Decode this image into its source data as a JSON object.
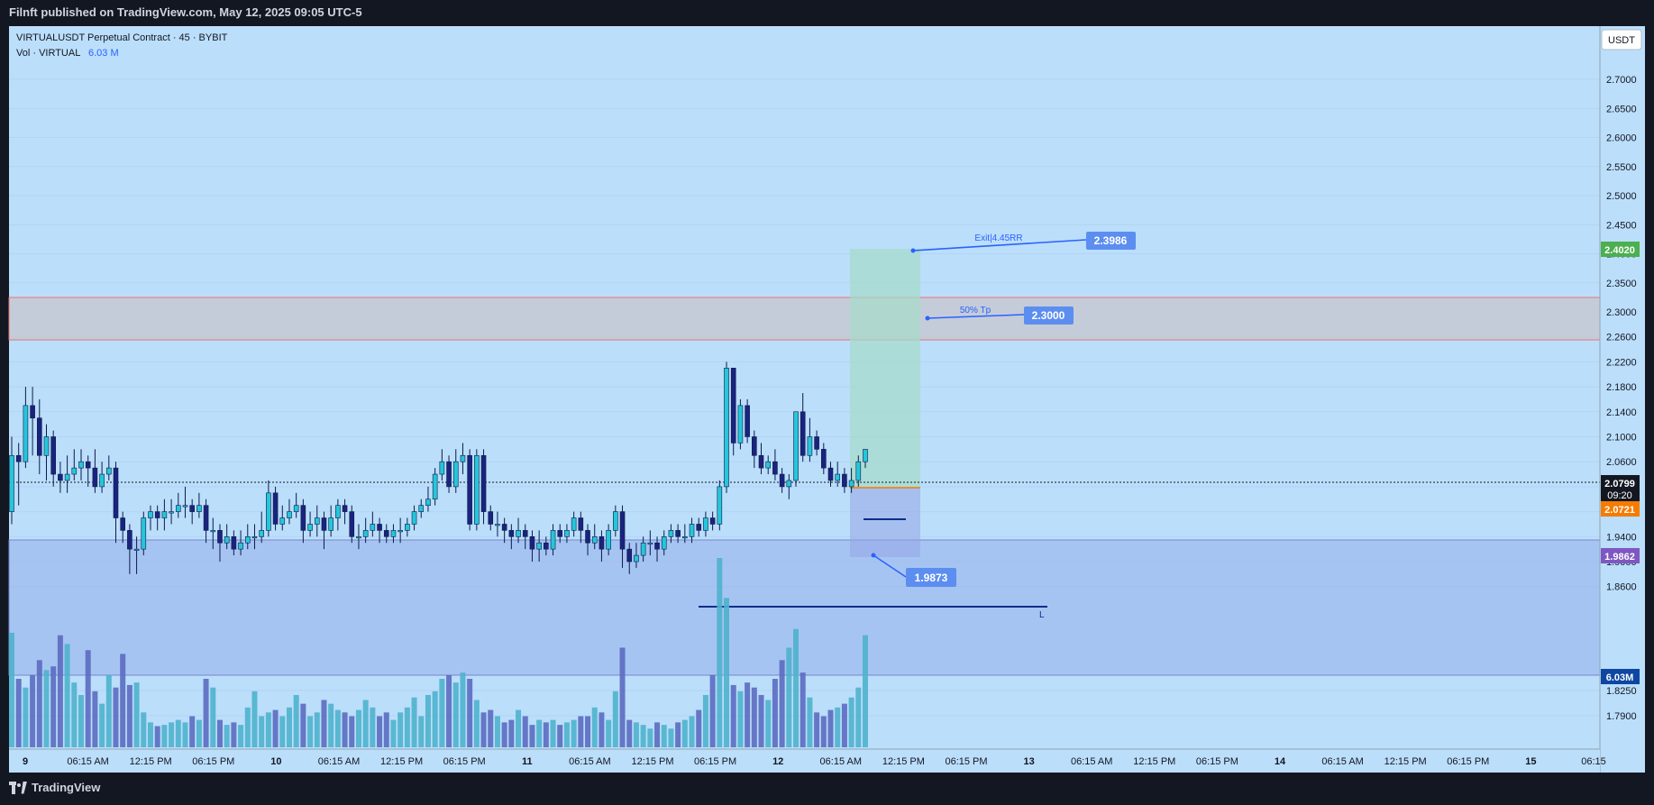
{
  "header": {
    "published": "Filnft published on TradingView.com, May 12, 2025 09:05 UTC-5"
  },
  "legend": {
    "symbol": "VIRTUALUSDT Perpetual Contract · 45 · BYBIT",
    "vol_label": "Vol · VIRTUAL",
    "vol_value": "6.03 M"
  },
  "currency": "USDT",
  "price_axis": {
    "ticks": [
      "2.7000",
      "2.6500",
      "2.6000",
      "2.5500",
      "2.5000",
      "2.4500",
      "2.4000",
      "2.3500",
      "2.3000",
      "2.2600",
      "2.2200",
      "2.1800",
      "2.1400",
      "2.1000",
      "2.0600",
      "2.0200",
      "1.9800",
      "1.9400",
      "1.9000",
      "1.8600",
      "1.8250",
      "1.7900"
    ]
  },
  "badges": {
    "target": {
      "text": "2.4020",
      "color": "#4caf50"
    },
    "last_price": {
      "text": "2.0799",
      "countdown": "09:20",
      "color": "#131722"
    },
    "entry": {
      "text": "2.0721",
      "color": "#f57c00"
    },
    "stop": {
      "text": "1.9862",
      "color": "#7e57c2"
    },
    "volume": {
      "text": "6.03M",
      "color": "#0d47a1"
    }
  },
  "time_axis": {
    "ticks": [
      "9",
      "06:15 AM",
      "12:15 PM",
      "06:15 PM",
      "10",
      "06:15 AM",
      "12:15 PM",
      "06:15 PM",
      "11",
      "06:15 AM",
      "12:15 PM",
      "06:15 PM",
      "12",
      "06:15 AM",
      "12:15 PM",
      "06:15 PM",
      "13",
      "06:15 AM",
      "12:15 PM",
      "06:15 PM",
      "14",
      "06:15 AM",
      "12:15 PM",
      "06:15 PM",
      "15",
      "06:15"
    ]
  },
  "annotations": {
    "exit_label": "Exit|4.45RR",
    "exit_price": "2.3986",
    "tp_label": "50% Tp",
    "tp_price": "2.3000",
    "stop_price": "1.9873",
    "line_label": "L"
  },
  "colors": {
    "chart_bg": "#bbdefb",
    "candle_up": "#26c6da",
    "candle_down": "#1a237e",
    "vol_up": "#4fb3cc",
    "vol_down": "#5c6bc0",
    "zone_red": "#e57373"
  },
  "brand": "TradingView",
  "candles": [
    [
      1.98,
      2.07,
      2.1,
      1.96
    ],
    [
      2.07,
      2.06,
      2.09,
      1.99
    ],
    [
      2.06,
      2.15,
      2.18,
      2.05
    ],
    [
      2.15,
      2.13,
      2.18,
      2.07
    ],
    [
      2.13,
      2.07,
      2.16,
      2.04
    ],
    [
      2.07,
      2.1,
      2.12,
      2.03
    ],
    [
      2.1,
      2.04,
      2.11,
      2.02
    ],
    [
      2.04,
      2.03,
      2.06,
      2.01
    ],
    [
      2.03,
      2.04,
      2.07,
      2.01
    ],
    [
      2.04,
      2.05,
      2.08,
      2.03
    ],
    [
      2.05,
      2.06,
      2.08,
      2.03
    ],
    [
      2.06,
      2.05,
      2.07,
      2.02
    ],
    [
      2.05,
      2.02,
      2.08,
      2.01
    ],
    [
      2.02,
      2.04,
      2.06,
      2.01
    ],
    [
      2.04,
      2.05,
      2.07,
      2.03
    ],
    [
      2.05,
      1.97,
      2.06,
      1.93
    ],
    [
      1.97,
      1.95,
      1.98,
      1.93
    ],
    [
      1.95,
      1.92,
      1.96,
      1.88
    ],
    [
      1.92,
      1.92,
      1.94,
      1.88
    ],
    [
      1.92,
      1.97,
      1.98,
      1.91
    ],
    [
      1.97,
      1.98,
      1.99,
      1.95
    ],
    [
      1.98,
      1.97,
      1.99,
      1.95
    ],
    [
      1.97,
      1.98,
      2.0,
      1.95
    ],
    [
      1.98,
      1.98,
      2.0,
      1.96
    ],
    [
      1.98,
      1.99,
      2.01,
      1.97
    ],
    [
      1.99,
      1.99,
      2.02,
      1.97
    ],
    [
      1.99,
      1.98,
      2.0,
      1.96
    ],
    [
      1.98,
      1.99,
      2.01,
      1.97
    ],
    [
      1.99,
      1.95,
      2.0,
      1.93
    ],
    [
      1.95,
      1.95,
      1.97,
      1.92
    ],
    [
      1.95,
      1.93,
      1.96,
      1.9
    ],
    [
      1.93,
      1.94,
      1.96,
      1.92
    ],
    [
      1.94,
      1.92,
      1.95,
      1.91
    ],
    [
      1.92,
      1.93,
      1.95,
      1.91
    ],
    [
      1.93,
      1.94,
      1.96,
      1.92
    ],
    [
      1.94,
      1.94,
      1.96,
      1.92
    ],
    [
      1.94,
      1.95,
      1.98,
      1.93
    ],
    [
      1.95,
      2.01,
      2.03,
      1.94
    ],
    [
      2.01,
      1.96,
      2.02,
      1.95
    ],
    [
      1.96,
      1.97,
      1.99,
      1.95
    ],
    [
      1.97,
      1.98,
      2.0,
      1.96
    ],
    [
      1.98,
      1.99,
      2.01,
      1.97
    ],
    [
      1.99,
      1.95,
      2.0,
      1.93
    ],
    [
      1.95,
      1.96,
      1.98,
      1.94
    ],
    [
      1.96,
      1.97,
      1.99,
      1.94
    ],
    [
      1.97,
      1.95,
      1.98,
      1.92
    ],
    [
      1.95,
      1.97,
      1.99,
      1.94
    ],
    [
      1.97,
      1.99,
      2.0,
      1.95
    ],
    [
      1.99,
      1.98,
      2.0,
      1.96
    ],
    [
      1.98,
      1.94,
      1.99,
      1.93
    ],
    [
      1.94,
      1.94,
      1.96,
      1.92
    ],
    [
      1.94,
      1.95,
      1.97,
      1.93
    ],
    [
      1.95,
      1.96,
      1.98,
      1.94
    ],
    [
      1.96,
      1.95,
      1.97,
      1.93
    ],
    [
      1.95,
      1.94,
      1.96,
      1.93
    ],
    [
      1.94,
      1.95,
      1.96,
      1.93
    ],
    [
      1.95,
      1.95,
      1.97,
      1.93
    ],
    [
      1.95,
      1.96,
      1.97,
      1.94
    ],
    [
      1.96,
      1.98,
      1.99,
      1.95
    ],
    [
      1.98,
      1.99,
      2.0,
      1.97
    ],
    [
      1.99,
      2.0,
      2.02,
      1.98
    ],
    [
      2.0,
      2.04,
      2.05,
      1.99
    ],
    [
      2.04,
      2.06,
      2.08,
      2.03
    ],
    [
      2.06,
      2.02,
      2.07,
      2.01
    ],
    [
      2.02,
      2.06,
      2.08,
      2.01
    ],
    [
      2.06,
      2.07,
      2.09,
      2.04
    ],
    [
      2.07,
      1.96,
      2.08,
      1.95
    ],
    [
      1.96,
      2.07,
      2.08,
      1.95
    ],
    [
      2.07,
      1.98,
      2.08,
      1.96
    ],
    [
      1.98,
      1.96,
      1.99,
      1.95
    ],
    [
      1.96,
      1.96,
      1.98,
      1.94
    ],
    [
      1.96,
      1.95,
      1.97,
      1.93
    ],
    [
      1.95,
      1.94,
      1.96,
      1.92
    ],
    [
      1.94,
      1.95,
      1.97,
      1.93
    ],
    [
      1.95,
      1.94,
      1.96,
      1.92
    ],
    [
      1.94,
      1.92,
      1.95,
      1.9
    ],
    [
      1.92,
      1.93,
      1.95,
      1.9
    ],
    [
      1.93,
      1.92,
      1.94,
      1.91
    ],
    [
      1.92,
      1.95,
      1.96,
      1.91
    ],
    [
      1.95,
      1.94,
      1.96,
      1.93
    ],
    [
      1.94,
      1.95,
      1.96,
      1.93
    ],
    [
      1.95,
      1.97,
      1.98,
      1.94
    ],
    [
      1.97,
      1.95,
      1.98,
      1.93
    ],
    [
      1.95,
      1.93,
      1.96,
      1.91
    ],
    [
      1.93,
      1.94,
      1.96,
      1.92
    ],
    [
      1.94,
      1.92,
      1.95,
      1.9
    ],
    [
      1.92,
      1.95,
      1.96,
      1.91
    ],
    [
      1.95,
      1.98,
      1.99,
      1.94
    ],
    [
      1.98,
      1.92,
      1.99,
      1.89
    ],
    [
      1.92,
      1.9,
      1.93,
      1.88
    ],
    [
      1.9,
      1.91,
      1.93,
      1.89
    ],
    [
      1.91,
      1.93,
      1.94,
      1.9
    ],
    [
      1.93,
      1.93,
      1.95,
      1.91
    ],
    [
      1.93,
      1.92,
      1.94,
      1.9
    ],
    [
      1.92,
      1.94,
      1.95,
      1.91
    ],
    [
      1.94,
      1.95,
      1.96,
      1.93
    ],
    [
      1.95,
      1.94,
      1.96,
      1.93
    ],
    [
      1.94,
      1.94,
      1.96,
      1.93
    ],
    [
      1.94,
      1.96,
      1.97,
      1.93
    ],
    [
      1.96,
      1.95,
      1.97,
      1.94
    ],
    [
      1.95,
      1.97,
      1.98,
      1.94
    ],
    [
      1.97,
      1.96,
      1.98,
      1.95
    ],
    [
      1.96,
      2.02,
      2.03,
      1.95
    ],
    [
      2.02,
      2.21,
      2.22,
      2.01
    ],
    [
      2.21,
      2.09,
      2.21,
      2.07
    ],
    [
      2.09,
      2.15,
      2.16,
      2.08
    ],
    [
      2.15,
      2.1,
      2.16,
      2.09
    ],
    [
      2.1,
      2.07,
      2.11,
      2.05
    ],
    [
      2.07,
      2.05,
      2.09,
      2.04
    ],
    [
      2.05,
      2.06,
      2.07,
      2.04
    ],
    [
      2.06,
      2.04,
      2.08,
      2.03
    ],
    [
      2.04,
      2.02,
      2.05,
      2.01
    ],
    [
      2.02,
      2.03,
      2.04,
      2.0
    ],
    [
      2.03,
      2.14,
      2.14,
      2.02
    ],
    [
      2.14,
      2.07,
      2.17,
      2.06
    ],
    [
      2.07,
      2.1,
      2.13,
      2.06
    ],
    [
      2.1,
      2.08,
      2.11,
      2.07
    ],
    [
      2.08,
      2.05,
      2.09,
      2.04
    ],
    [
      2.05,
      2.03,
      2.06,
      2.02
    ],
    [
      2.03,
      2.04,
      2.06,
      2.02
    ],
    [
      2.04,
      2.02,
      2.05,
      2.01
    ],
    [
      2.02,
      2.03,
      2.05,
      2.01
    ],
    [
      2.03,
      2.06,
      2.07,
      2.02
    ],
    [
      2.06,
      2.0799,
      2.08,
      2.05
    ]
  ],
  "volumes": [
    0.92,
    0.55,
    0.48,
    0.58,
    0.7,
    0.62,
    0.65,
    0.9,
    0.83,
    0.52,
    0.42,
    0.78,
    0.45,
    0.35,
    0.58,
    0.48,
    0.75,
    0.5,
    0.52,
    0.28,
    0.2,
    0.17,
    0.18,
    0.2,
    0.22,
    0.2,
    0.25,
    0.22,
    0.55,
    0.48,
    0.22,
    0.18,
    0.2,
    0.18,
    0.32,
    0.45,
    0.25,
    0.28,
    0.3,
    0.25,
    0.32,
    0.42,
    0.35,
    0.25,
    0.28,
    0.38,
    0.35,
    0.3,
    0.28,
    0.25,
    0.3,
    0.38,
    0.32,
    0.25,
    0.28,
    0.22,
    0.28,
    0.32,
    0.4,
    0.25,
    0.42,
    0.45,
    0.55,
    0.58,
    0.52,
    0.6,
    0.55,
    0.38,
    0.28,
    0.3,
    0.25,
    0.2,
    0.22,
    0.3,
    0.25,
    0.18,
    0.22,
    0.2,
    0.22,
    0.18,
    0.2,
    0.22,
    0.25,
    0.25,
    0.32,
    0.28,
    0.22,
    0.45,
    0.8,
    0.22,
    0.2,
    0.18,
    0.15,
    0.2,
    0.18,
    0.15,
    0.2,
    0.22,
    0.25,
    0.3,
    0.42,
    0.58,
    1.52,
    1.2,
    0.5,
    0.45,
    0.52,
    0.48,
    0.42,
    0.38,
    0.55,
    0.7,
    0.8,
    0.95,
    0.6,
    0.4,
    0.28,
    0.25,
    0.3,
    0.32,
    0.35,
    0.4,
    0.48,
    0.9
  ]
}
